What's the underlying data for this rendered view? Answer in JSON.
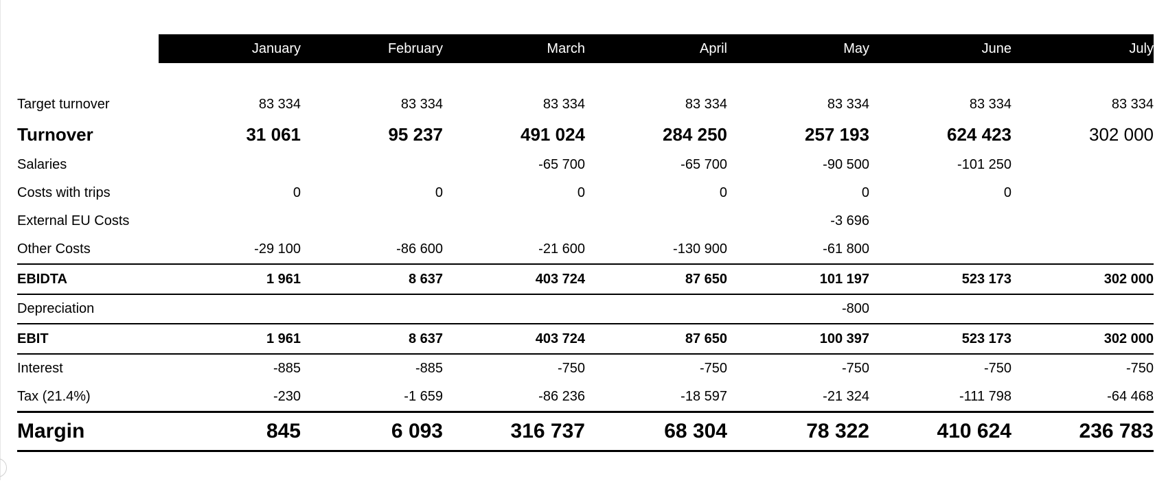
{
  "months": [
    "January",
    "February",
    "March",
    "April",
    "May",
    "June",
    "July"
  ],
  "rows": {
    "target_turnover": {
      "label": "Target turnover",
      "values": [
        "83 334",
        "83 334",
        "83 334",
        "83 334",
        "83 334",
        "83 334",
        "83 334"
      ]
    },
    "turnover": {
      "label": "Turnover",
      "values": [
        "31 061",
        "95 237",
        "491 024",
        "284 250",
        "257 193",
        "624 423",
        "302 000"
      ]
    },
    "salaries": {
      "label": "Salaries",
      "values": [
        "",
        "",
        "-65 700",
        "-65 700",
        "-90 500",
        "-101 250",
        ""
      ]
    },
    "costs_trips": {
      "label": "Costs with trips",
      "values": [
        "0",
        "0",
        "0",
        "0",
        "0",
        "0",
        ""
      ]
    },
    "external_eu": {
      "label": "External EU Costs",
      "values": [
        "",
        "",
        "",
        "",
        "-3 696",
        "",
        ""
      ]
    },
    "other_costs": {
      "label": "Other Costs",
      "values": [
        "-29 100",
        "-86 600",
        "-21 600",
        "-130 900",
        "-61 800",
        "",
        ""
      ]
    },
    "ebidta": {
      "label": "EBIDTA",
      "values": [
        "1 961",
        "8 637",
        "403 724",
        "87 650",
        "101 197",
        "523 173",
        "302 000"
      ]
    },
    "depreciation": {
      "label": "Depreciation",
      "values": [
        "",
        "",
        "",
        "",
        "-800",
        "",
        ""
      ]
    },
    "ebit": {
      "label": "EBIT",
      "values": [
        "1 961",
        "8 637",
        "403 724",
        "87 650",
        "100 397",
        "523 173",
        "302 000"
      ]
    },
    "interest": {
      "label": "Interest",
      "values": [
        "-885",
        "-885",
        "-750",
        "-750",
        "-750",
        "-750",
        "-750"
      ]
    },
    "tax": {
      "label": "Tax (21.4%)",
      "values": [
        "-230",
        "-1 659",
        "-86 236",
        "-18 597",
        "-21 324",
        "-111 798",
        "-64 468"
      ]
    },
    "margin": {
      "label": "Margin",
      "values": [
        "845",
        "6 093",
        "316 737",
        "68 304",
        "78 322",
        "410 624",
        "236 783"
      ]
    }
  }
}
